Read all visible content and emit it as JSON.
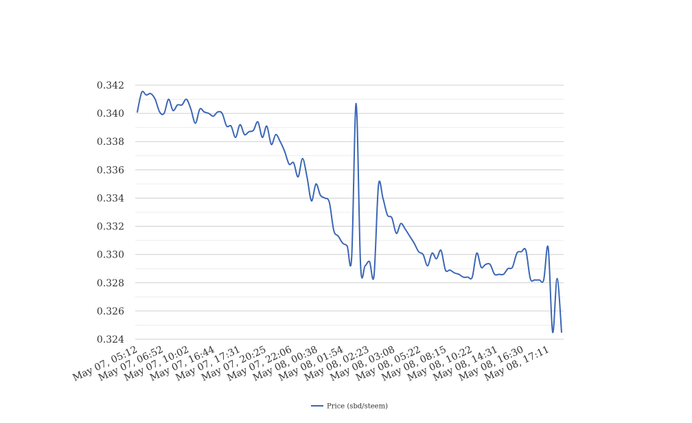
{
  "chart_data": {
    "type": "line",
    "title": "",
    "xlabel": "",
    "ylabel": "",
    "ylim": [
      0.324,
      0.342
    ],
    "y_ticks": [
      "0.342",
      "0.340",
      "0.338",
      "0.336",
      "0.334",
      "0.332",
      "0.330",
      "0.328",
      "0.326",
      "0.324"
    ],
    "x_tick_labels": [
      "May 07, 05:12",
      "May 07, 06:52",
      "May 07, 10:02",
      "May 07, 16:44",
      "May 07, 17:31",
      "May 07, 20:25",
      "May 07, 22:06",
      "May 08, 00:38",
      "May 08, 01:54",
      "May 08, 02:23",
      "May 08, 03:08",
      "May 08, 05:22",
      "May 08, 08:15",
      "May 08, 10:22",
      "May 08, 14:31",
      "May 08, 16:30",
      "May 08, 17:11"
    ],
    "grid": true,
    "legend_position": "bottom-center",
    "series": [
      {
        "name": "Price (sbd/steem)",
        "color": "#3a66b5",
        "values": [
          0.3401,
          0.3415,
          0.3413,
          0.3414,
          0.341,
          0.3401,
          0.34,
          0.341,
          0.3402,
          0.3406,
          0.3406,
          0.341,
          0.3403,
          0.3393,
          0.3403,
          0.3401,
          0.34,
          0.3398,
          0.3401,
          0.34,
          0.3391,
          0.3391,
          0.3383,
          0.3392,
          0.3385,
          0.3387,
          0.3388,
          0.3394,
          0.3383,
          0.3391,
          0.3378,
          0.3385,
          0.338,
          0.3373,
          0.3364,
          0.3365,
          0.3355,
          0.3368,
          0.3355,
          0.3338,
          0.335,
          0.3342,
          0.334,
          0.3337,
          0.3317,
          0.3313,
          0.3308,
          0.3306,
          0.3298,
          0.3407,
          0.3292,
          0.3292,
          0.3295,
          0.3285,
          0.3349,
          0.334,
          0.3328,
          0.3326,
          0.3315,
          0.3322,
          0.3318,
          0.3313,
          0.3308,
          0.3302,
          0.33,
          0.3292,
          0.3301,
          0.3297,
          0.3303,
          0.3289,
          0.3289,
          0.3287,
          0.3286,
          0.3284,
          0.3284,
          0.3284,
          0.3301,
          0.3291,
          0.3293,
          0.3293,
          0.3286,
          0.3286,
          0.3286,
          0.329,
          0.3291,
          0.3301,
          0.3302,
          0.3303,
          0.3283,
          0.3282,
          0.3282,
          0.3282,
          0.3305,
          0.3245,
          0.3283,
          0.3245
        ]
      }
    ]
  }
}
